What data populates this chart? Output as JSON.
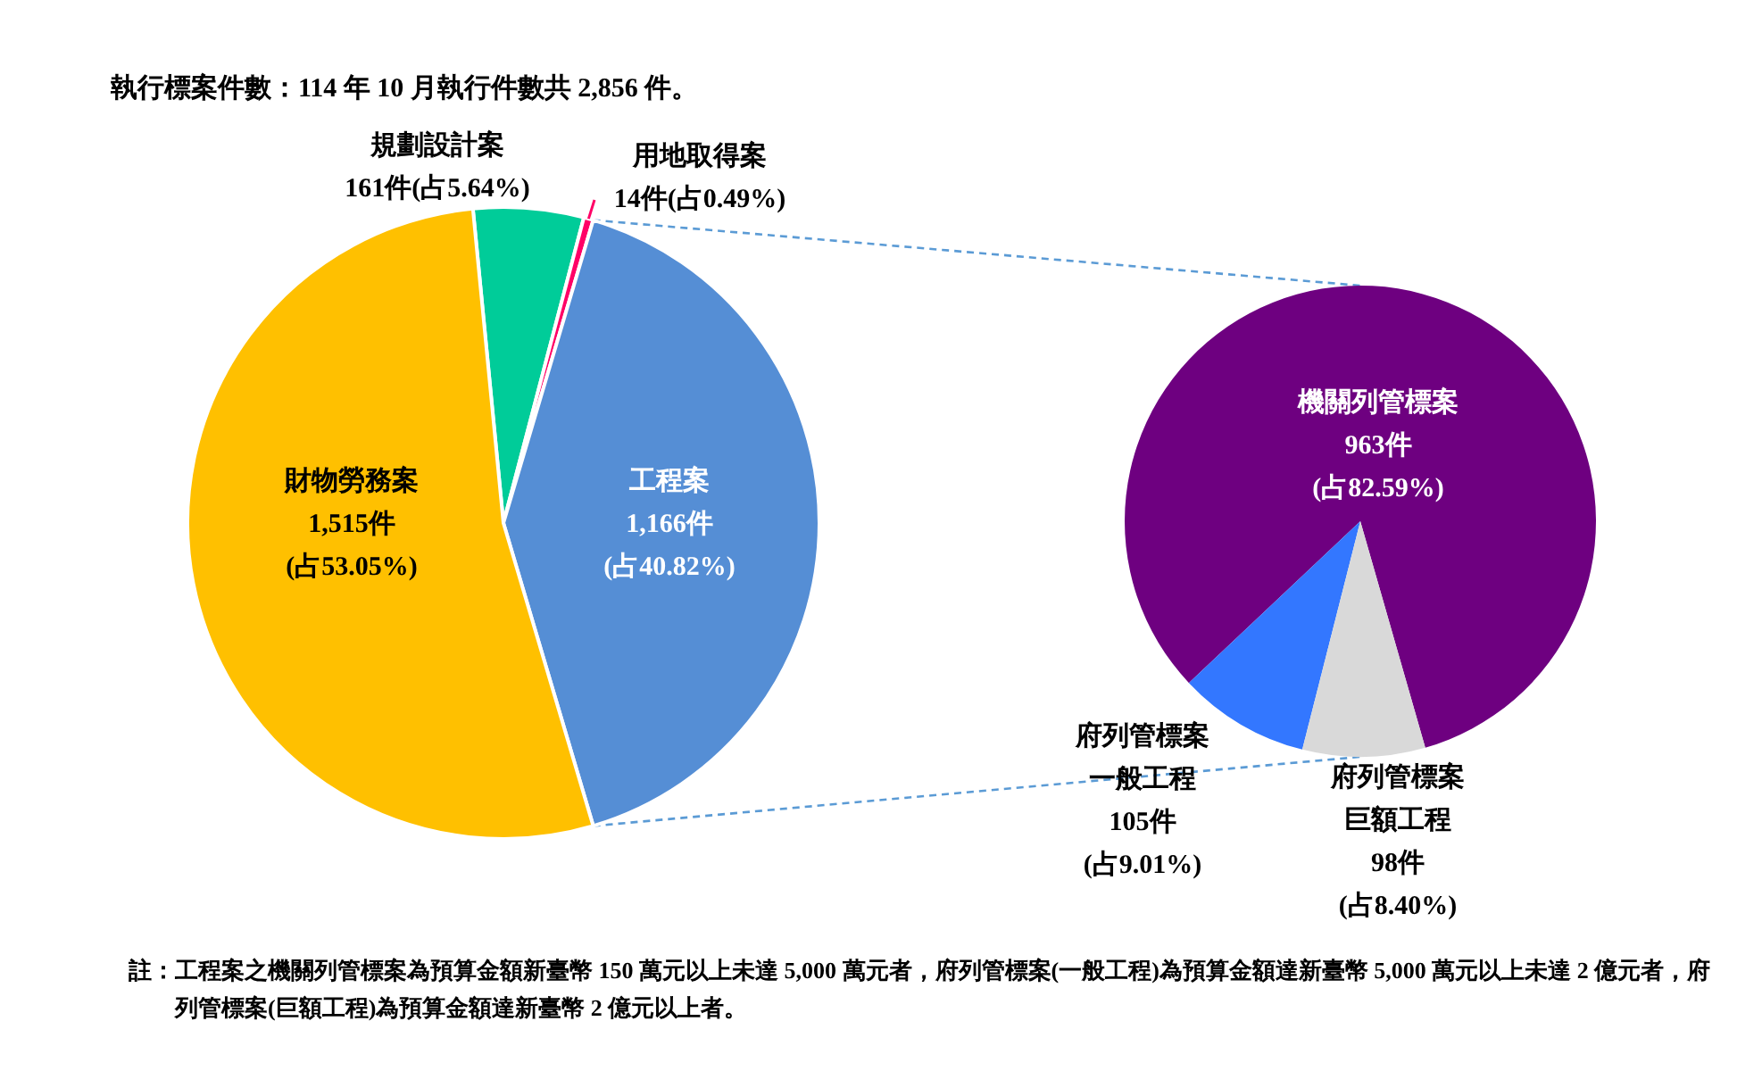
{
  "chart_data": [
    {
      "type": "pie",
      "title": "執行標案件數：114 年 10 月執行件數共 2,856 件。",
      "categories": [
        "規劃設計案",
        "用地取得案",
        "工程案",
        "財物勞務案"
      ],
      "values": [
        161,
        14,
        1166,
        1515
      ],
      "colors": [
        "#00cc99",
        "#ff0066",
        "#558ed5",
        "#ffc000"
      ],
      "value_labels": [
        "161件(占5.64%)",
        "14件(占0.49%)",
        "1,166件\n(占40.82%)",
        "1,515件\n(占53.05%)"
      ]
    },
    {
      "type": "pie",
      "categories": [
        "機關列管標案",
        "府列管標案一般工程",
        "府列管標案巨額工程"
      ],
      "values": [
        963,
        105,
        98
      ],
      "colors": [
        "#6e0080",
        "#3377ff",
        "#d9d9d9"
      ],
      "value_labels": [
        "963件\n(占82.59%)",
        "105件\n(占9.01%)",
        "98件\n(占8.40%)"
      ],
      "annotations": [
        "註：工程案之機關列管標案為預算金額新臺幣 150 萬元以上未達 5,000 萬元者，府列管標案(一般工程)為預算金額達新臺幣 5,000 萬元以上未達 2 億元者，府列管標案(巨額工程)為預算金額達新臺幣 2 億元以上者。"
      ]
    }
  ]
}
